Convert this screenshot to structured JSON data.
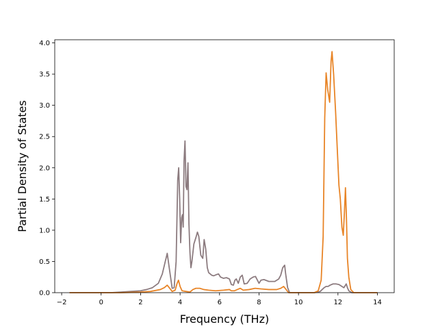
{
  "chart_data": {
    "type": "line",
    "title": "",
    "xlabel": "Frequency (THz)",
    "ylabel": "Partial Density of States",
    "xlim": [
      -2.35,
      14.85
    ],
    "ylim": [
      0.0,
      4.05
    ],
    "xticks": [
      -2,
      0,
      2,
      4,
      6,
      8,
      10,
      12,
      14
    ],
    "xtick_labels": [
      "−2",
      "0",
      "2",
      "4",
      "6",
      "8",
      "10",
      "12",
      "14"
    ],
    "yticks": [
      0.0,
      0.5,
      1.0,
      1.5,
      2.0,
      2.5,
      3.0,
      3.5,
      4.0
    ],
    "ytick_labels": [
      "0.0",
      "0.5",
      "1.0",
      "1.5",
      "2.0",
      "2.5",
      "3.0",
      "3.5",
      "4.0"
    ],
    "grid": false,
    "legend": "none",
    "series": [
      {
        "color": "#8c7b7f",
        "points": [
          [
            -1.6,
            0.0
          ],
          [
            0.0,
            0.0
          ],
          [
            0.5,
            0.0
          ],
          [
            1.0,
            0.01
          ],
          [
            1.5,
            0.02
          ],
          [
            2.0,
            0.03
          ],
          [
            2.3,
            0.05
          ],
          [
            2.6,
            0.08
          ],
          [
            2.9,
            0.15
          ],
          [
            3.1,
            0.3
          ],
          [
            3.25,
            0.5
          ],
          [
            3.35,
            0.63
          ],
          [
            3.45,
            0.4
          ],
          [
            3.6,
            0.07
          ],
          [
            3.7,
            0.08
          ],
          [
            3.8,
            0.5
          ],
          [
            3.88,
            1.8
          ],
          [
            3.93,
            2.0
          ],
          [
            3.98,
            1.5
          ],
          [
            4.03,
            0.8
          ],
          [
            4.08,
            1.2
          ],
          [
            4.12,
            1.25
          ],
          [
            4.16,
            1.05
          ],
          [
            4.2,
            2.1
          ],
          [
            4.25,
            2.43
          ],
          [
            4.3,
            1.7
          ],
          [
            4.35,
            1.65
          ],
          [
            4.4,
            2.08
          ],
          [
            4.45,
            1.1
          ],
          [
            4.5,
            0.65
          ],
          [
            4.55,
            0.4
          ],
          [
            4.6,
            0.5
          ],
          [
            4.7,
            0.78
          ],
          [
            4.8,
            0.88
          ],
          [
            4.88,
            0.97
          ],
          [
            4.95,
            0.9
          ],
          [
            5.05,
            0.6
          ],
          [
            5.15,
            0.55
          ],
          [
            5.22,
            0.85
          ],
          [
            5.3,
            0.7
          ],
          [
            5.38,
            0.4
          ],
          [
            5.45,
            0.32
          ],
          [
            5.6,
            0.28
          ],
          [
            5.7,
            0.27
          ],
          [
            5.85,
            0.29
          ],
          [
            5.95,
            0.3
          ],
          [
            6.05,
            0.25
          ],
          [
            6.2,
            0.23
          ],
          [
            6.35,
            0.24
          ],
          [
            6.5,
            0.22
          ],
          [
            6.6,
            0.13
          ],
          [
            6.7,
            0.12
          ],
          [
            6.78,
            0.2
          ],
          [
            6.85,
            0.22
          ],
          [
            6.95,
            0.15
          ],
          [
            7.05,
            0.25
          ],
          [
            7.15,
            0.28
          ],
          [
            7.25,
            0.14
          ],
          [
            7.4,
            0.15
          ],
          [
            7.55,
            0.22
          ],
          [
            7.7,
            0.25
          ],
          [
            7.82,
            0.26
          ],
          [
            7.92,
            0.2
          ],
          [
            8.0,
            0.15
          ],
          [
            8.1,
            0.2
          ],
          [
            8.25,
            0.21
          ],
          [
            8.5,
            0.18
          ],
          [
            8.8,
            0.18
          ],
          [
            9.0,
            0.22
          ],
          [
            9.1,
            0.28
          ],
          [
            9.2,
            0.4
          ],
          [
            9.3,
            0.44
          ],
          [
            9.35,
            0.3
          ],
          [
            9.45,
            0.08
          ],
          [
            9.55,
            0.0
          ],
          [
            10.0,
            0.0
          ],
          [
            10.8,
            0.0
          ],
          [
            11.0,
            0.01
          ],
          [
            11.1,
            0.02
          ],
          [
            11.2,
            0.05
          ],
          [
            11.3,
            0.08
          ],
          [
            11.4,
            0.1
          ],
          [
            11.5,
            0.1
          ],
          [
            11.6,
            0.12
          ],
          [
            11.75,
            0.14
          ],
          [
            11.9,
            0.14
          ],
          [
            12.05,
            0.13
          ],
          [
            12.2,
            0.1
          ],
          [
            12.3,
            0.08
          ],
          [
            12.42,
            0.14
          ],
          [
            12.48,
            0.08
          ],
          [
            12.55,
            0.03
          ],
          [
            12.7,
            0.0
          ],
          [
            14.0,
            0.0
          ]
        ]
      },
      {
        "color": "#e88426",
        "points": [
          [
            -1.6,
            0.0
          ],
          [
            0.0,
            0.0
          ],
          [
            1.0,
            0.0
          ],
          [
            1.5,
            0.005
          ],
          [
            2.0,
            0.01
          ],
          [
            2.5,
            0.02
          ],
          [
            3.0,
            0.05
          ],
          [
            3.2,
            0.08
          ],
          [
            3.35,
            0.12
          ],
          [
            3.45,
            0.08
          ],
          [
            3.6,
            0.02
          ],
          [
            3.75,
            0.04
          ],
          [
            3.85,
            0.15
          ],
          [
            3.92,
            0.2
          ],
          [
            4.0,
            0.1
          ],
          [
            4.1,
            0.03
          ],
          [
            4.3,
            0.02
          ],
          [
            4.5,
            0.01
          ],
          [
            4.65,
            0.05
          ],
          [
            4.8,
            0.07
          ],
          [
            5.0,
            0.07
          ],
          [
            5.2,
            0.05
          ],
          [
            5.45,
            0.04
          ],
          [
            5.8,
            0.03
          ],
          [
            6.2,
            0.04
          ],
          [
            6.5,
            0.05
          ],
          [
            6.6,
            0.03
          ],
          [
            6.75,
            0.03
          ],
          [
            6.9,
            0.05
          ],
          [
            7.05,
            0.07
          ],
          [
            7.2,
            0.04
          ],
          [
            7.5,
            0.05
          ],
          [
            7.8,
            0.07
          ],
          [
            8.1,
            0.06
          ],
          [
            8.5,
            0.05
          ],
          [
            8.9,
            0.05
          ],
          [
            9.1,
            0.07
          ],
          [
            9.25,
            0.1
          ],
          [
            9.35,
            0.06
          ],
          [
            9.5,
            0.0
          ],
          [
            10.8,
            0.0
          ],
          [
            11.0,
            0.03
          ],
          [
            11.15,
            0.2
          ],
          [
            11.25,
            0.9
          ],
          [
            11.33,
            2.8
          ],
          [
            11.4,
            3.52
          ],
          [
            11.48,
            3.25
          ],
          [
            11.58,
            3.05
          ],
          [
            11.65,
            3.7
          ],
          [
            11.7,
            3.86
          ],
          [
            11.78,
            3.5
          ],
          [
            11.88,
            2.9
          ],
          [
            11.98,
            2.2
          ],
          [
            12.05,
            1.72
          ],
          [
            12.12,
            1.5
          ],
          [
            12.2,
            1.05
          ],
          [
            12.27,
            0.92
          ],
          [
            12.33,
            1.3
          ],
          [
            12.38,
            1.68
          ],
          [
            12.43,
            1.2
          ],
          [
            12.48,
            0.55
          ],
          [
            12.55,
            0.25
          ],
          [
            12.65,
            0.05
          ],
          [
            12.8,
            0.0
          ],
          [
            14.0,
            0.0
          ]
        ]
      }
    ]
  }
}
